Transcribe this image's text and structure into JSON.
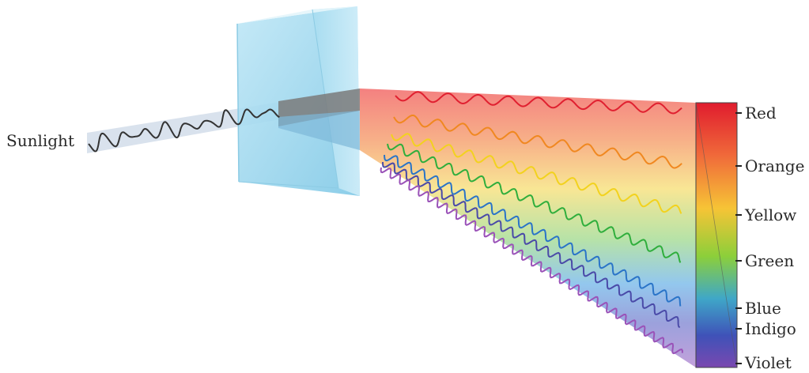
{
  "input_label": "Sunlight",
  "spectrum": {
    "colors": [
      {
        "name": "Red",
        "hex": "#e02030"
      },
      {
        "name": "Orange",
        "hex": "#f08820"
      },
      {
        "name": "Yellow",
        "hex": "#f2d21e"
      },
      {
        "name": "Green",
        "hex": "#2fae3c"
      },
      {
        "name": "Blue",
        "hex": "#2a74c8"
      },
      {
        "name": "Indigo",
        "hex": "#4a4aa8"
      },
      {
        "name": "Violet",
        "hex": "#9a52b8"
      }
    ]
  },
  "prism_color": "#9fd8ee",
  "beam_color": "#444444"
}
